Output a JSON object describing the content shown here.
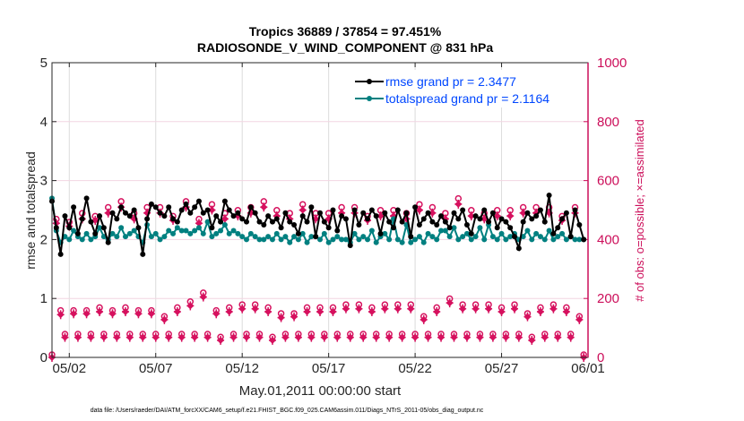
{
  "chart_data": {
    "type": "line",
    "title": "Tropics 36889 / 37854 = 97.451%",
    "subtitle": "RADIOSONDE_V_WIND_COMPONENT @ 831 hPa",
    "xlabel": "May.01,2011 00:00:00 start",
    "ylabel": "rmse and totalspread",
    "y2label": "# of obs: o=possible; ×=assimilated",
    "footnote": "data file: /Users/raeder/DAI/ATM_forcXX/CAM6_setup/f.e21.FHIST_BGC.f09_025.CAM6assim.011/Diags_NTrS_2011-05/obs_diag_output.nc",
    "x_tick_labels": [
      "05/02",
      "05/07",
      "05/12",
      "05/17",
      "05/22",
      "05/27",
      "06/01"
    ],
    "x_tick_days": [
      1,
      6,
      11,
      16,
      21,
      26,
      31
    ],
    "xlim_days": [
      0,
      31
    ],
    "ylim": [
      0,
      5
    ],
    "yticks": [
      "0",
      "1",
      "2",
      "3",
      "4",
      "5"
    ],
    "y2lim": [
      0,
      1000
    ],
    "y2ticks": [
      "0",
      "200",
      "400",
      "600",
      "800",
      "1000"
    ],
    "grid": true,
    "legend_position": "top-right",
    "colors": {
      "rmse": "#000000",
      "spread": "#008080",
      "obs": "#d6115e",
      "legend_text": "#0047ff",
      "right_axis": "#cc0e5a"
    },
    "legend": [
      {
        "name": "rmse grand pr = 2.3477",
        "series": "rmse"
      },
      {
        "name": "totalspread grand pr = 2.1164",
        "series": "spread"
      }
    ],
    "time_step_days": 0.25,
    "series": [
      {
        "name": "rmse",
        "values": [
          2.65,
          2.2,
          1.75,
          2.4,
          2.2,
          2.55,
          2.1,
          2.35,
          2.7,
          2.3,
          2.1,
          2.4,
          2.2,
          1.95,
          2.45,
          2.35,
          2.55,
          2.45,
          2.4,
          2.5,
          2.2,
          1.75,
          2.35,
          2.6,
          2.55,
          2.45,
          2.4,
          2.55,
          2.35,
          2.3,
          2.5,
          2.6,
          2.45,
          2.55,
          2.65,
          2.45,
          2.5,
          2.2,
          2.4,
          2.3,
          2.65,
          2.5,
          2.4,
          2.45,
          2.35,
          2.3,
          2.55,
          2.45,
          2.3,
          2.25,
          2.4,
          2.3,
          2.35,
          2.2,
          2.45,
          2.3,
          2.25,
          2.1,
          2.4,
          2.3,
          2.55,
          2.05,
          2.45,
          2.3,
          2.2,
          2.5,
          2.15,
          2.4,
          2.35,
          1.9,
          2.5,
          2.25,
          2.45,
          2.35,
          2.5,
          2.4,
          2.1,
          2.45,
          2.3,
          2.2,
          2.5,
          2.3,
          2.45,
          2.05,
          2.55,
          2.25,
          2.35,
          2.45,
          2.3,
          2.25,
          2.4,
          2.3,
          2.2,
          2.45,
          2.35,
          2.5,
          2.25,
          2.1,
          2.4,
          2.35,
          2.5,
          2.3,
          2.45,
          2.2,
          2.35,
          2.3,
          2.2,
          2.05,
          1.85,
          2.3,
          2.45,
          2.35,
          2.4,
          2.5,
          2.3,
          2.75,
          2.1,
          2.2,
          2.35,
          2.45,
          2.05,
          2.5,
          2.25,
          2.0
        ],
        "legend_index": 0
      },
      {
        "name": "totalspread",
        "values": [
          2.7,
          2.15,
          1.95,
          2.05,
          2.0,
          2.15,
          2.05,
          2.0,
          2.1,
          2.0,
          2.05,
          2.2,
          2.05,
          2.0,
          2.1,
          2.05,
          2.2,
          2.05,
          2.1,
          2.15,
          2.05,
          1.95,
          2.25,
          2.05,
          2.1,
          2.0,
          2.05,
          2.15,
          2.1,
          2.2,
          2.15,
          2.15,
          2.1,
          2.15,
          2.2,
          2.1,
          2.3,
          2.05,
          2.1,
          2.15,
          2.25,
          2.1,
          2.15,
          2.1,
          2.05,
          2.0,
          2.1,
          2.05,
          2.0,
          2.0,
          2.05,
          2.0,
          2.1,
          2.0,
          2.05,
          1.95,
          2.05,
          2.0,
          2.1,
          1.95,
          2.05,
          2.05,
          2.0,
          2.1,
          1.95,
          2.0,
          2.05,
          2.0,
          2.0,
          1.95,
          2.1,
          2.0,
          2.05,
          2.0,
          2.15,
          1.95,
          2.05,
          2.1,
          2.0,
          2.35,
          2.0,
          1.95,
          2.25,
          1.95,
          2.0,
          2.05,
          1.95,
          2.1,
          2.05,
          2.0,
          2.15,
          2.15,
          2.05,
          2.2,
          2.0,
          2.05,
          2.1,
          2.0,
          2.05,
          2.2,
          2.0,
          2.25,
          2.05,
          2.0,
          2.1,
          2.0,
          2.05,
          2.1,
          2.0,
          2.05,
          2.15,
          2.0,
          2.1,
          2.05,
          2.0,
          2.15,
          2.0,
          2.05,
          2.1,
          2.0,
          2.05,
          2.0,
          2.0,
          2.0
        ],
        "legend_index": 1
      },
      {
        "name": "obs_possible",
        "values": [
          0,
          460,
          150,
          70,
          450,
          150,
          70,
          480,
          150,
          70,
          470,
          160,
          70,
          500,
          150,
          70,
          520,
          160,
          70,
          480,
          150,
          70,
          500,
          150,
          70,
          500,
          130,
          70,
          470,
          160,
          70,
          520,
          180,
          70,
          460,
          210,
          70,
          510,
          150,
          60,
          480,
          160,
          70,
          490,
          170,
          70,
          500,
          170,
          70,
          520,
          160,
          60,
          490,
          140,
          70,
          480,
          140,
          70,
          510,
          160,
          70,
          480,
          160,
          70,
          480,
          160,
          70,
          500,
          170,
          70,
          500,
          170,
          70,
          470,
          160,
          70,
          490,
          170,
          70,
          490,
          170,
          70,
          480,
          170,
          70,
          510,
          130,
          70,
          500,
          160,
          70,
          480,
          190,
          70,
          530,
          170,
          70,
          490,
          170,
          70,
          480,
          170,
          70,
          490,
          160,
          70,
          490,
          170,
          70,
          500,
          140,
          60,
          500,
          160,
          70,
          500,
          170,
          70,
          470,
          160,
          70,
          500,
          130,
          0
        ],
        "legend_index": null
      },
      {
        "name": "obs_assimilated",
        "values": [
          0,
          455,
          145,
          68,
          445,
          148,
          68,
          470,
          148,
          68,
          465,
          155,
          68,
          490,
          148,
          68,
          510,
          155,
          68,
          470,
          148,
          68,
          490,
          148,
          68,
          490,
          128,
          68,
          465,
          155,
          68,
          510,
          175,
          68,
          455,
          205,
          68,
          500,
          148,
          58,
          470,
          155,
          68,
          480,
          165,
          68,
          490,
          165,
          68,
          510,
          155,
          58,
          480,
          135,
          68,
          470,
          138,
          68,
          500,
          155,
          68,
          470,
          155,
          68,
          470,
          155,
          68,
          490,
          165,
          68,
          490,
          165,
          68,
          465,
          155,
          68,
          480,
          165,
          68,
          480,
          165,
          68,
          470,
          165,
          68,
          500,
          128,
          68,
          490,
          155,
          68,
          470,
          185,
          68,
          520,
          165,
          68,
          480,
          165,
          68,
          470,
          165,
          68,
          480,
          155,
          68,
          480,
          165,
          68,
          490,
          138,
          58,
          490,
          155,
          68,
          490,
          165,
          68,
          465,
          155,
          68,
          490,
          128,
          0
        ],
        "legend_index": null
      }
    ]
  }
}
